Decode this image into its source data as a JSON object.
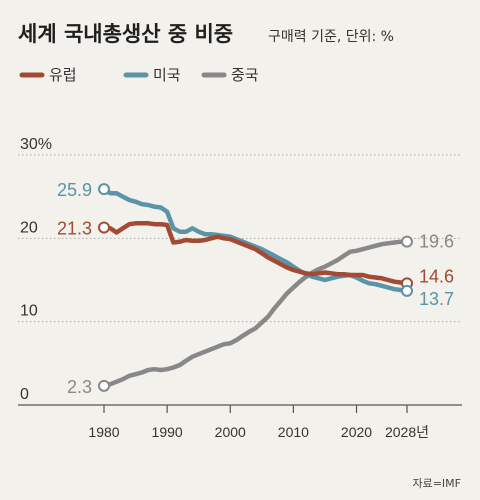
{
  "header": {
    "title": "세계 국내총생산 중 비중",
    "subtitle": "구매력 기준, 단위: %"
  },
  "source": "자료=IMF",
  "chart_data": {
    "type": "line",
    "title": "세계 국내총생산 중 비중",
    "subtitle": "구매력 기준, 단위: %",
    "xlim": [
      1980,
      2028
    ],
    "ylim": [
      0,
      30
    ],
    "yticks": [
      {
        "value": 0,
        "label": "0"
      },
      {
        "value": 10,
        "label": "10"
      },
      {
        "value": 20,
        "label": "20"
      },
      {
        "value": 30,
        "label": "30%"
      }
    ],
    "xticks": [
      {
        "value": 1980,
        "label": "1980"
      },
      {
        "value": 1990,
        "label": "1990"
      },
      {
        "value": 2000,
        "label": "2000"
      },
      {
        "value": 2010,
        "label": "2010"
      },
      {
        "value": 2020,
        "label": "2020"
      },
      {
        "value": 2028,
        "label": "2028년"
      }
    ],
    "grid": "horizontal",
    "legend_position": "top-left",
    "series": [
      {
        "name": "유럽",
        "color": "#a24a33",
        "start_label": "21.3",
        "end_label": "14.6",
        "x": [
          1980,
          1981,
          1982,
          1983,
          1984,
          1985,
          1986,
          1987,
          1988,
          1989,
          1990,
          1991,
          1992,
          1993,
          1994,
          1995,
          1996,
          1997,
          1998,
          1999,
          2000,
          2001,
          2002,
          2003,
          2004,
          2005,
          2006,
          2007,
          2008,
          2009,
          2010,
          2011,
          2012,
          2013,
          2014,
          2015,
          2016,
          2017,
          2018,
          2019,
          2020,
          2021,
          2022,
          2023,
          2024,
          2025,
          2026,
          2027,
          2028
        ],
        "values": [
          21.3,
          21.2,
          20.7,
          21.2,
          21.7,
          21.8,
          21.8,
          21.8,
          21.7,
          21.7,
          21.6,
          19.5,
          19.6,
          19.8,
          19.7,
          19.7,
          19.8,
          20.0,
          20.2,
          20.0,
          19.9,
          19.6,
          19.3,
          19.0,
          18.7,
          18.2,
          17.7,
          17.3,
          16.9,
          16.5,
          16.2,
          16.0,
          15.8,
          15.7,
          15.8,
          15.9,
          15.8,
          15.7,
          15.7,
          15.6,
          15.6,
          15.6,
          15.4,
          15.3,
          15.2,
          15.0,
          14.8,
          14.7,
          14.6
        ]
      },
      {
        "name": "미국",
        "color": "#5b93a9",
        "start_label": "25.9",
        "end_label": "13.7",
        "x": [
          1980,
          1981,
          1982,
          1983,
          1984,
          1985,
          1986,
          1987,
          1988,
          1989,
          1990,
          1991,
          1992,
          1993,
          1994,
          1995,
          1996,
          1997,
          1998,
          1999,
          2000,
          2001,
          2002,
          2003,
          2004,
          2005,
          2006,
          2007,
          2008,
          2009,
          2010,
          2011,
          2012,
          2013,
          2014,
          2015,
          2016,
          2017,
          2018,
          2019,
          2020,
          2021,
          2022,
          2023,
          2024,
          2025,
          2026,
          2027,
          2028
        ],
        "values": [
          25.9,
          25.4,
          25.4,
          25.0,
          24.6,
          24.4,
          24.1,
          24.0,
          23.8,
          23.7,
          23.2,
          21.2,
          20.8,
          20.8,
          21.2,
          20.8,
          20.5,
          20.5,
          20.4,
          20.3,
          20.2,
          19.9,
          19.6,
          19.3,
          19.0,
          18.7,
          18.3,
          17.9,
          17.5,
          17.1,
          16.6,
          16.1,
          15.7,
          15.4,
          15.2,
          15.0,
          15.2,
          15.4,
          15.5,
          15.6,
          15.3,
          14.9,
          14.6,
          14.5,
          14.3,
          14.1,
          13.9,
          13.8,
          13.7
        ]
      },
      {
        "name": "중국",
        "color": "#888888",
        "start_label": "2.3",
        "end_label": "19.6",
        "x": [
          1980,
          1981,
          1982,
          1983,
          1984,
          1985,
          1986,
          1987,
          1988,
          1989,
          1990,
          1991,
          1992,
          1993,
          1994,
          1995,
          1996,
          1997,
          1998,
          1999,
          2000,
          2001,
          2002,
          2003,
          2004,
          2005,
          2006,
          2007,
          2008,
          2009,
          2010,
          2011,
          2012,
          2013,
          2014,
          2015,
          2016,
          2017,
          2018,
          2019,
          2020,
          2021,
          2022,
          2023,
          2024,
          2025,
          2026,
          2027,
          2028
        ],
        "values": [
          2.3,
          2.5,
          2.8,
          3.1,
          3.5,
          3.7,
          3.9,
          4.2,
          4.3,
          4.2,
          4.3,
          4.5,
          4.8,
          5.3,
          5.8,
          6.1,
          6.4,
          6.7,
          7.0,
          7.3,
          7.4,
          7.8,
          8.3,
          8.8,
          9.2,
          9.9,
          10.6,
          11.6,
          12.5,
          13.4,
          14.1,
          14.8,
          15.4,
          15.9,
          16.3,
          16.6,
          17.0,
          17.4,
          17.9,
          18.4,
          18.5,
          18.7,
          18.9,
          19.1,
          19.3,
          19.4,
          19.5,
          19.6,
          19.6
        ]
      }
    ]
  }
}
